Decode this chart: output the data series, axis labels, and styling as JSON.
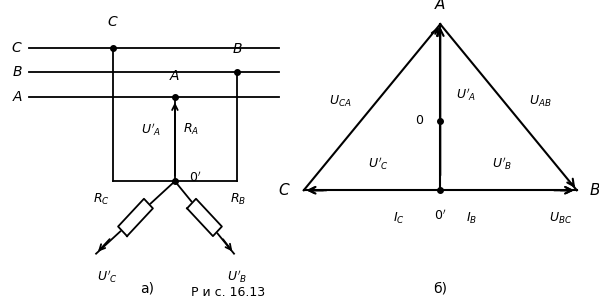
{
  "fig_width": 5.99,
  "fig_height": 3.02,
  "dpi": 100,
  "bg_color": "#ffffff",
  "caption": "Р и с. 16.13"
}
